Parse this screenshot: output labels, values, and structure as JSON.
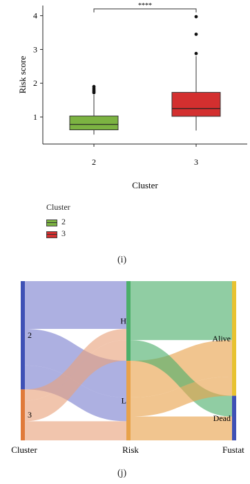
{
  "chart_data": [
    {
      "type": "boxplot",
      "xlabel": "Cluster",
      "ylabel": "Risk score",
      "categories": [
        "2",
        "3"
      ],
      "y_ticks": [
        1,
        2,
        3,
        4
      ],
      "ylim": [
        0.2,
        4.3
      ],
      "boxes": [
        {
          "category": "2",
          "color": "#7cb342",
          "whisker_low": 0.48,
          "q1": 0.62,
          "median": 0.78,
          "q3": 1.03,
          "whisker_high": 1.66,
          "outliers": [
            1.72,
            1.76,
            1.8,
            1.85,
            1.9
          ]
        },
        {
          "category": "3",
          "color": "#d32f2f",
          "whisker_low": 0.6,
          "q1": 1.02,
          "median": 1.25,
          "q3": 1.73,
          "whisker_high": 2.8,
          "outliers": [
            2.88,
            3.45,
            3.97
          ]
        }
      ],
      "significance": {
        "label": "****",
        "between": [
          "2",
          "3"
        ],
        "y": 4.2
      },
      "legend": {
        "title": "Cluster",
        "entries": [
          {
            "label": "2",
            "color": "#7cb342"
          },
          {
            "label": "3",
            "color": "#d32f2f"
          }
        ]
      },
      "grid": false
    },
    {
      "type": "sankey",
      "axes": [
        "Cluster",
        "Risk",
        "Fustat"
      ],
      "nodes": [
        {
          "axis": 0,
          "label": "2",
          "color": "#3f51b5",
          "count": 68
        },
        {
          "axis": 0,
          "label": "3",
          "color": "#e07a3a",
          "count": 32
        },
        {
          "axis": 1,
          "label": "H",
          "color": "#4caf6a",
          "count": 50
        },
        {
          "axis": 1,
          "label": "L",
          "color": "#e8a24a",
          "count": 50
        },
        {
          "axis": 2,
          "label": "Alive",
          "color": "#e8c230",
          "count": 72
        },
        {
          "axis": 2,
          "label": "Dead",
          "color": "#3f51b5",
          "count": 28
        }
      ],
      "flows": [
        {
          "path": [
            "2",
            "H",
            "Alive"
          ],
          "value": 30,
          "color": "#7a7fcf"
        },
        {
          "path": [
            "2",
            "L",
            "Alive"
          ],
          "value": 23,
          "color": "#7a7fcf"
        },
        {
          "path": [
            "2",
            "L",
            "Dead"
          ],
          "value": 15,
          "color": "#7a7fcf"
        },
        {
          "path": [
            "3",
            "H",
            "Dead"
          ],
          "value": 13,
          "color": "#e8a27a"
        },
        {
          "path": [
            "3",
            "H",
            "Alive"
          ],
          "value": 7,
          "color": "#e8a27a"
        },
        {
          "path": [
            "3",
            "L",
            "Alive"
          ],
          "value": 12,
          "color": "#e8a27a"
        }
      ]
    }
  ],
  "panels": {
    "i_label": "(i)",
    "j_label": "(j)"
  }
}
